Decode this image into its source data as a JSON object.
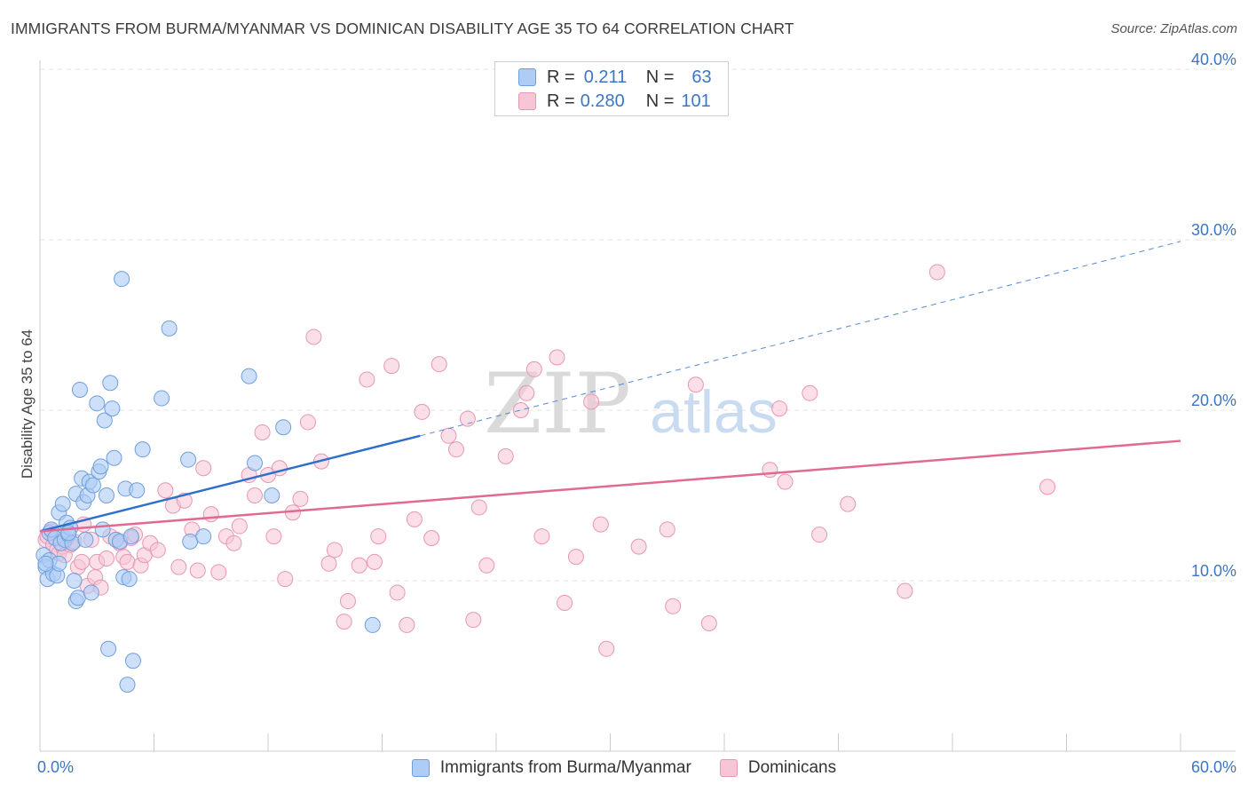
{
  "title": "IMMIGRANTS FROM BURMA/MYANMAR VS DOMINICAN DISABILITY AGE 35 TO 64 CORRELATION CHART",
  "source": "Source: ZipAtlas.com",
  "watermark": {
    "zip": "ZIP",
    "atlas": "atlas"
  },
  "stats": [
    {
      "r_label": "R =",
      "r_value": "0.211",
      "n_label": "N =",
      "n_value": "63"
    },
    {
      "r_label": "R =",
      "r_value": "0.280",
      "n_label": "N =",
      "n_value": "101"
    }
  ],
  "legend": [
    "Immigrants from Burma/Myanmar",
    "Dominicans"
  ],
  "colors": {
    "blue_fill": "#aeccf5",
    "blue_stroke": "#6e9fdc",
    "blue_line": "#2c6fcc",
    "pink_fill": "#f8c5d6",
    "pink_stroke": "#e896b4",
    "pink_line": "#e06a93",
    "axis_text": "#3b76c4",
    "grid": "#e3e3e3"
  },
  "chart_data": {
    "type": "scatter",
    "title": "IMMIGRANTS FROM BURMA/MYANMAR VS DOMINICAN DISABILITY AGE 35 TO 64 CORRELATION CHART",
    "xlabel": "",
    "ylabel": "Disability Age 35 to 64",
    "xlim": [
      0,
      60
    ],
    "ylim": [
      0,
      42
    ],
    "x_tick_labels": [
      "0.0%",
      "60.0%"
    ],
    "y_ticks": [
      10,
      20,
      30,
      40
    ],
    "y_tick_labels": [
      "10.0%",
      "20.0%",
      "30.0%",
      "40.0%"
    ],
    "grid": true,
    "series": [
      {
        "name": "Immigrants from Burma/Myanmar",
        "color": "blue",
        "r": 0.211,
        "n": 63,
        "trend": {
          "x0": 0,
          "y0": 12.9,
          "x1": 20,
          "y1": 18.5,
          "dashed_to_x": 60,
          "dashed_to_y": 29.9
        },
        "points": [
          [
            0.2,
            11.5
          ],
          [
            0.3,
            10.8
          ],
          [
            0.4,
            10.1
          ],
          [
            0.5,
            11.2
          ],
          [
            0.5,
            12.8
          ],
          [
            0.6,
            13.0
          ],
          [
            0.7,
            10.4
          ],
          [
            0.8,
            12.5
          ],
          [
            0.9,
            10.3
          ],
          [
            1.0,
            11.0
          ],
          [
            1.0,
            14.0
          ],
          [
            1.1,
            12.2
          ],
          [
            1.2,
            14.5
          ],
          [
            1.3,
            12.4
          ],
          [
            1.4,
            13.4
          ],
          [
            1.5,
            12.7
          ],
          [
            1.6,
            13.1
          ],
          [
            1.7,
            12.2
          ],
          [
            1.8,
            10.0
          ],
          [
            1.9,
            8.8
          ],
          [
            1.9,
            15.1
          ],
          [
            2.0,
            9.0
          ],
          [
            2.1,
            21.2
          ],
          [
            2.2,
            16.0
          ],
          [
            2.3,
            14.6
          ],
          [
            2.4,
            12.4
          ],
          [
            2.5,
            15.0
          ],
          [
            2.6,
            15.8
          ],
          [
            2.7,
            9.3
          ],
          [
            2.8,
            15.6
          ],
          [
            3.0,
            20.4
          ],
          [
            3.1,
            16.4
          ],
          [
            3.2,
            16.7
          ],
          [
            3.3,
            13.0
          ],
          [
            3.4,
            19.4
          ],
          [
            3.5,
            15.0
          ],
          [
            3.6,
            6.0
          ],
          [
            3.7,
            21.6
          ],
          [
            3.8,
            20.1
          ],
          [
            3.9,
            17.2
          ],
          [
            4.0,
            12.4
          ],
          [
            4.2,
            12.3
          ],
          [
            4.3,
            27.7
          ],
          [
            4.4,
            10.2
          ],
          [
            4.5,
            15.4
          ],
          [
            4.6,
            3.9
          ],
          [
            4.7,
            10.1
          ],
          [
            4.8,
            12.6
          ],
          [
            4.9,
            5.3
          ],
          [
            5.1,
            15.3
          ],
          [
            5.4,
            17.7
          ],
          [
            6.4,
            20.7
          ],
          [
            6.8,
            24.8
          ],
          [
            7.8,
            17.1
          ],
          [
            7.9,
            12.3
          ],
          [
            8.6,
            12.6
          ],
          [
            11.0,
            22.0
          ],
          [
            11.3,
            16.9
          ],
          [
            12.2,
            15.0
          ],
          [
            12.8,
            19.0
          ],
          [
            17.5,
            7.4
          ],
          [
            0.3,
            11.0
          ],
          [
            1.5,
            12.8
          ]
        ]
      },
      {
        "name": "Dominicans",
        "color": "pink",
        "r": 0.28,
        "n": 101,
        "trend": {
          "x0": 0,
          "y0": 12.9,
          "x1": 60,
          "y1": 18.2
        },
        "points": [
          [
            0.3,
            12.4
          ],
          [
            0.4,
            12.6
          ],
          [
            0.6,
            12.9
          ],
          [
            0.7,
            12.1
          ],
          [
            0.9,
            11.8
          ],
          [
            1.0,
            11.6
          ],
          [
            1.2,
            12.0
          ],
          [
            1.3,
            11.5
          ],
          [
            1.4,
            12.4
          ],
          [
            1.6,
            12.1
          ],
          [
            1.8,
            12.3
          ],
          [
            2.0,
            10.8
          ],
          [
            2.2,
            11.1
          ],
          [
            2.3,
            13.3
          ],
          [
            2.5,
            9.7
          ],
          [
            2.7,
            12.4
          ],
          [
            2.9,
            10.2
          ],
          [
            3.0,
            11.1
          ],
          [
            3.2,
            9.6
          ],
          [
            3.5,
            11.3
          ],
          [
            3.7,
            12.6
          ],
          [
            4.0,
            12.4
          ],
          [
            4.2,
            12.2
          ],
          [
            4.4,
            11.4
          ],
          [
            4.6,
            11.1
          ],
          [
            4.8,
            12.5
          ],
          [
            5.0,
            12.7
          ],
          [
            5.3,
            10.9
          ],
          [
            5.5,
            11.5
          ],
          [
            5.8,
            12.2
          ],
          [
            6.2,
            11.8
          ],
          [
            6.6,
            15.3
          ],
          [
            7.0,
            14.4
          ],
          [
            7.3,
            10.8
          ],
          [
            7.6,
            14.7
          ],
          [
            8.0,
            13.0
          ],
          [
            8.3,
            10.6
          ],
          [
            8.6,
            16.6
          ],
          [
            9.0,
            13.9
          ],
          [
            9.4,
            10.5
          ],
          [
            9.8,
            12.6
          ],
          [
            10.2,
            12.2
          ],
          [
            10.5,
            13.2
          ],
          [
            11.0,
            16.2
          ],
          [
            11.3,
            15.0
          ],
          [
            11.7,
            18.7
          ],
          [
            12.0,
            16.2
          ],
          [
            12.3,
            12.6
          ],
          [
            12.6,
            16.6
          ],
          [
            12.9,
            10.1
          ],
          [
            13.3,
            14.0
          ],
          [
            13.7,
            14.8
          ],
          [
            14.1,
            19.3
          ],
          [
            14.4,
            24.3
          ],
          [
            14.8,
            17.0
          ],
          [
            15.2,
            11.0
          ],
          [
            15.5,
            11.8
          ],
          [
            16.0,
            7.6
          ],
          [
            16.2,
            8.8
          ],
          [
            16.8,
            10.9
          ],
          [
            17.2,
            21.8
          ],
          [
            17.6,
            11.1
          ],
          [
            17.8,
            12.6
          ],
          [
            18.5,
            22.6
          ],
          [
            18.8,
            9.3
          ],
          [
            19.3,
            7.4
          ],
          [
            19.7,
            13.6
          ],
          [
            20.1,
            19.9
          ],
          [
            20.6,
            12.5
          ],
          [
            21.0,
            22.7
          ],
          [
            21.5,
            18.5
          ],
          [
            21.9,
            17.7
          ],
          [
            22.5,
            19.5
          ],
          [
            22.8,
            7.7
          ],
          [
            23.1,
            14.3
          ],
          [
            23.5,
            10.9
          ],
          [
            24.5,
            17.3
          ],
          [
            25.6,
            21.0
          ],
          [
            25.3,
            20.0
          ],
          [
            26.0,
            22.4
          ],
          [
            26.4,
            12.6
          ],
          [
            27.2,
            23.1
          ],
          [
            27.6,
            8.7
          ],
          [
            28.2,
            11.4
          ],
          [
            29.0,
            20.5
          ],
          [
            29.5,
            13.3
          ],
          [
            29.8,
            6.0
          ],
          [
            31.5,
            12.0
          ],
          [
            33.0,
            13.0
          ],
          [
            33.3,
            8.5
          ],
          [
            34.5,
            21.5
          ],
          [
            35.2,
            7.5
          ],
          [
            38.4,
            16.5
          ],
          [
            38.9,
            20.1
          ],
          [
            39.2,
            15.8
          ],
          [
            40.5,
            21.0
          ],
          [
            41.0,
            12.7
          ],
          [
            42.5,
            14.5
          ],
          [
            45.5,
            9.4
          ],
          [
            47.2,
            28.1
          ],
          [
            53.0,
            15.5
          ]
        ]
      }
    ]
  }
}
